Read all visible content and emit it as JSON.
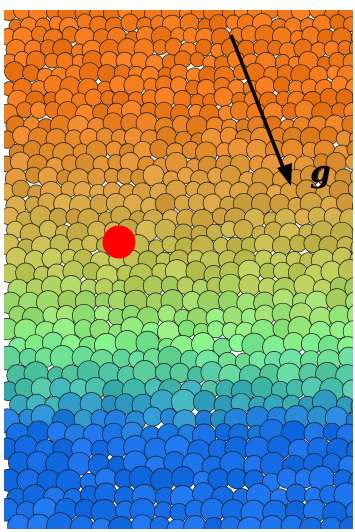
{
  "figure": {
    "gravity_label": "g",
    "colors": {
      "top": "#f07818",
      "upper_mid": "#d8a040",
      "middle": "#b8cc58",
      "lower_mid": "#80f088",
      "transition": "#40b8b0",
      "bottom": "#1870e8",
      "intruder": "#ff0000",
      "outline": "#1a1a1a",
      "arrow": "#000000"
    },
    "icons": {
      "intruder": "red-intruder-particle",
      "gravity": "gravity-arrow-icon"
    }
  }
}
